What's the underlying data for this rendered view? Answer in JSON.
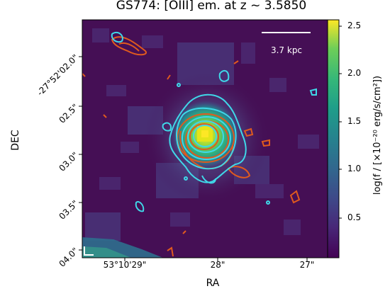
{
  "title": "GS774: [OIII] em. at z ~ 3.5850",
  "xlabel": "RA",
  "ylabel": "DEC",
  "x_ticks": [
    "53°10'29\"",
    "28\"",
    "27\""
  ],
  "y_ticks": [
    "-27°52'02.0\"",
    "02.5\"",
    "03.0\"",
    "03.5\"",
    "04.0\""
  ],
  "colorbar": {
    "label": "log(f / [×10⁻²⁰ erg/s/cm²])",
    "ticks": [
      "0.5",
      "1.0",
      "1.5",
      "2.0",
      "2.5"
    ],
    "colormap": "viridis"
  },
  "scale_bar": {
    "label": "3.7 kpc"
  },
  "colors": {
    "contour_cyan": "#3fd8e8",
    "contour_orange": "#e05a1e",
    "background": "#440f54"
  }
}
